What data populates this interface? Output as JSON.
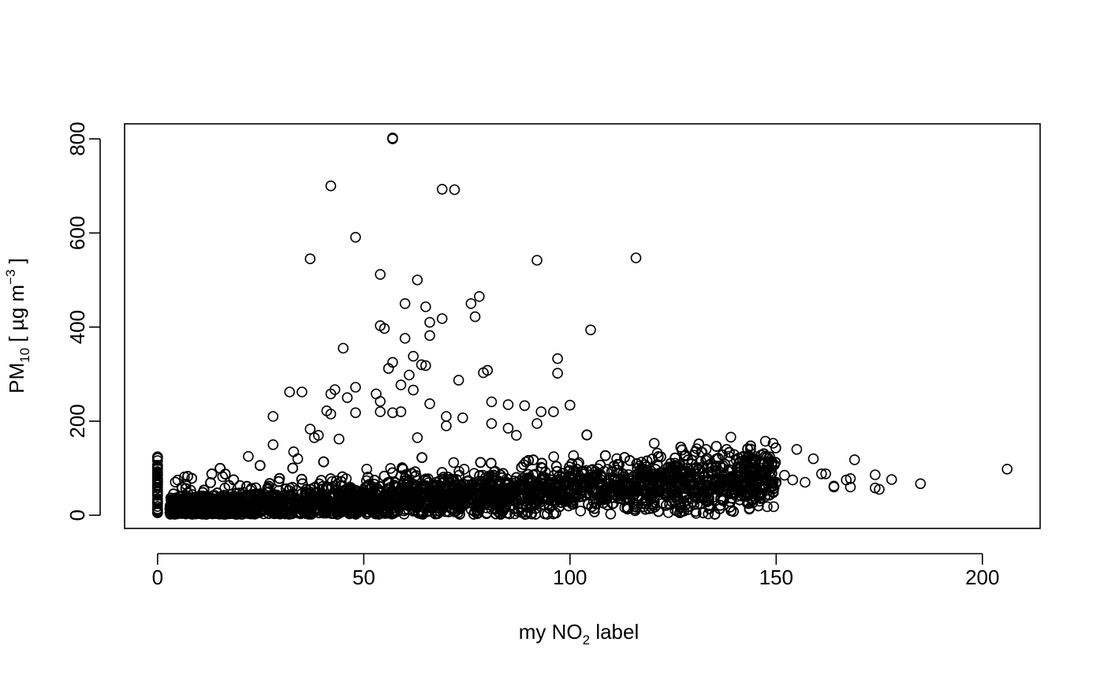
{
  "chart_data": {
    "type": "scatter",
    "title": "",
    "xlabel": {
      "base": "my NO",
      "sub": "2",
      "rest": " label"
    },
    "ylabel": {
      "base": "PM",
      "sub": "10",
      "rest": " [ µg m",
      "sup": "−3",
      "end": " ]"
    },
    "xlim": [
      -8,
      214
    ],
    "ylim": [
      -28,
      832
    ],
    "x_ticks": [
      0,
      50,
      100,
      150,
      200
    ],
    "x_tick_labels": [
      "0",
      "50",
      "100",
      "150",
      "200"
    ],
    "y_ticks": [
      0,
      200,
      400,
      600,
      800
    ],
    "y_tick_labels": [
      "0",
      "200",
      "400",
      "600",
      "800"
    ],
    "grid": false,
    "marker": "open-circle",
    "dense_band": {
      "x_min": 3,
      "x_max": 150,
      "y_at_xmin": 12,
      "y_at_xmax": 75,
      "spread": 40,
      "count": 7000
    },
    "zero_x_column": {
      "x": 0,
      "y_min": 5,
      "y_max": 125
    },
    "outliers": [
      [
        57,
        802
      ],
      [
        57,
        800
      ],
      [
        42,
        700
      ],
      [
        69,
        693
      ],
      [
        72,
        692
      ],
      [
        48,
        591
      ],
      [
        37,
        545
      ],
      [
        116,
        547
      ],
      [
        92,
        542
      ],
      [
        54,
        512
      ],
      [
        63,
        500
      ],
      [
        60,
        450
      ],
      [
        76,
        450
      ],
      [
        78,
        465
      ],
      [
        65,
        443
      ],
      [
        77,
        422
      ],
      [
        69,
        418
      ],
      [
        66,
        410
      ],
      [
        54,
        403
      ],
      [
        55,
        397
      ],
      [
        105,
        394
      ],
      [
        66,
        382
      ],
      [
        60,
        376
      ],
      [
        45,
        355
      ],
      [
        97,
        333
      ],
      [
        62,
        338
      ],
      [
        64,
        320
      ],
      [
        65,
        318
      ],
      [
        56,
        312
      ],
      [
        57,
        325
      ],
      [
        80,
        308
      ],
      [
        79,
        303
      ],
      [
        61,
        298
      ],
      [
        97,
        302
      ],
      [
        73,
        287
      ],
      [
        59,
        277
      ],
      [
        48,
        272
      ],
      [
        43,
        267
      ],
      [
        62,
        266
      ],
      [
        32,
        262
      ],
      [
        35,
        262
      ],
      [
        42,
        258
      ],
      [
        53,
        258
      ],
      [
        46,
        250
      ],
      [
        54,
        242
      ],
      [
        81,
        241
      ],
      [
        66,
        237
      ],
      [
        85,
        235
      ],
      [
        89,
        233
      ],
      [
        100,
        234
      ],
      [
        28,
        210
      ],
      [
        70,
        210
      ],
      [
        74,
        207
      ],
      [
        54,
        220
      ],
      [
        41,
        222
      ],
      [
        42,
        215
      ],
      [
        48,
        218
      ],
      [
        57,
        218
      ],
      [
        59,
        220
      ],
      [
        93,
        220
      ],
      [
        96,
        220
      ],
      [
        92,
        195
      ],
      [
        81,
        195
      ],
      [
        70,
        190
      ],
      [
        37,
        183
      ],
      [
        39,
        170
      ],
      [
        38,
        165
      ],
      [
        44,
        162
      ],
      [
        28,
        150
      ],
      [
        63,
        165
      ],
      [
        85,
        185
      ],
      [
        87,
        170
      ],
      [
        139,
        166
      ],
      [
        155,
        140
      ],
      [
        33,
        135
      ],
      [
        34,
        120
      ],
      [
        22,
        125
      ],
      [
        169,
        118
      ],
      [
        159,
        120
      ],
      [
        138,
        140
      ],
      [
        133,
        140
      ],
      [
        142,
        125
      ],
      [
        206,
        98
      ],
      [
        185,
        67
      ],
      [
        178,
        76
      ],
      [
        174,
        86
      ],
      [
        174,
        58
      ],
      [
        175,
        55
      ],
      [
        168,
        78
      ],
      [
        167,
        75
      ],
      [
        168,
        60
      ],
      [
        164,
        62
      ],
      [
        164,
        60
      ],
      [
        161,
        88
      ],
      [
        162,
        88
      ],
      [
        157,
        70
      ],
      [
        154,
        75
      ],
      [
        152,
        85
      ],
      [
        150,
        70
      ],
      [
        146,
        30
      ],
      [
        137,
        100
      ],
      [
        141,
        110
      ]
    ]
  }
}
